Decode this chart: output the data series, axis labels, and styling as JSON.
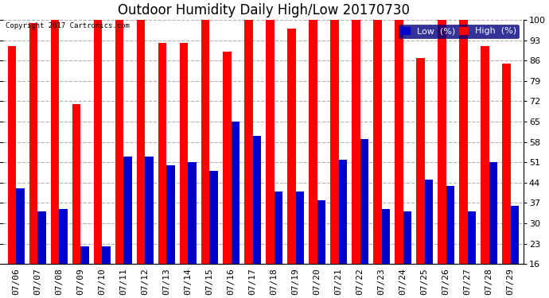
{
  "title": "Outdoor Humidity Daily High/Low 20170730",
  "copyright": "Copyright 2017 Cartronics.com",
  "yticks": [
    16,
    23,
    30,
    37,
    44,
    51,
    58,
    65,
    72,
    79,
    86,
    93,
    100
  ],
  "ylim": [
    16,
    100
  ],
  "background_color": "#ffffff",
  "plot_bg": "#ffffff",
  "grid_color": "#b0b0b0",
  "dates": [
    "07/06",
    "07/07",
    "07/08",
    "07/09",
    "07/10",
    "07/11",
    "07/12",
    "07/13",
    "07/14",
    "07/15",
    "07/16",
    "07/17",
    "07/18",
    "07/19",
    "07/20",
    "07/21",
    "07/22",
    "07/23",
    "07/24",
    "07/25",
    "07/26",
    "07/27",
    "07/28",
    "07/29"
  ],
  "high": [
    91,
    99,
    100,
    71,
    100,
    100,
    100,
    92,
    92,
    100,
    89,
    100,
    100,
    97,
    100,
    100,
    100,
    100,
    100,
    87,
    100,
    100,
    91,
    85
  ],
  "low": [
    42,
    34,
    35,
    22,
    22,
    53,
    53,
    50,
    51,
    48,
    65,
    60,
    41,
    41,
    38,
    52,
    59,
    35,
    34,
    45,
    43,
    34,
    51,
    36
  ],
  "high_color": "#ff0000",
  "low_color": "#0000cc",
  "bar_width": 0.4,
  "title_fontsize": 12,
  "tick_fontsize": 8,
  "legend_fontsize": 8,
  "figsize": [
    6.9,
    3.75
  ],
  "dpi": 100
}
